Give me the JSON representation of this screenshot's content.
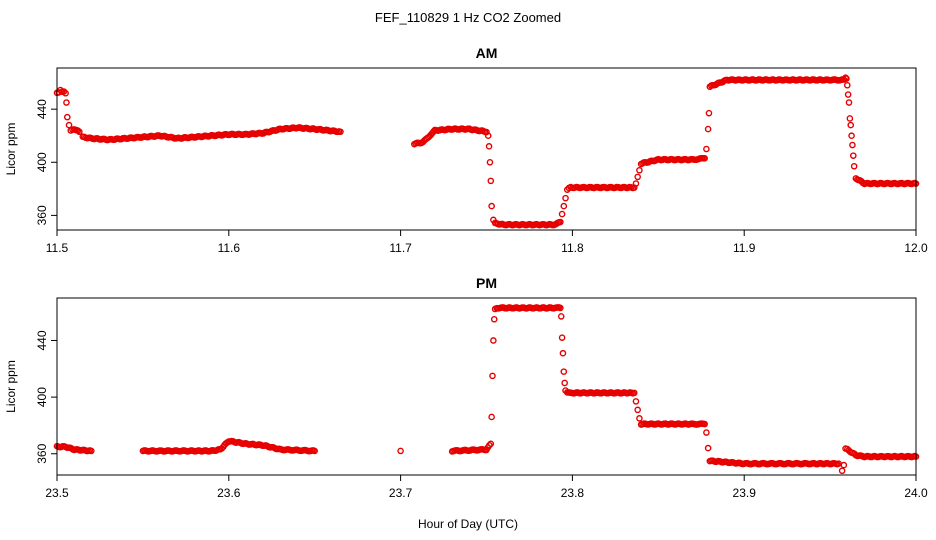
{
  "figure": {
    "title": "FEF_110829  1 Hz CO2 Zoomed",
    "xlabel": "Hour of Day (UTC)"
  },
  "colors": {
    "points": "#e60000",
    "axes": "#000000",
    "background": "#ffffff"
  },
  "chart_data": [
    {
      "type": "scatter",
      "title": "AM",
      "ylabel": "Licor ppm",
      "xlim": [
        11.5,
        12.0
      ],
      "ylim": [
        349,
        471
      ],
      "xticks": [
        11.5,
        11.6,
        11.7,
        11.8,
        11.9,
        12.0
      ],
      "xtick_labels": [
        "11.5",
        "11.6",
        "11.7",
        "11.8",
        "11.9",
        "12.0"
      ],
      "yticks": [
        360,
        400,
        440
      ],
      "ytick_labels": [
        "360",
        "400",
        "440"
      ],
      "grid": false,
      "series": [
        {
          "x": [
            11.5,
            11.502,
            11.504,
            11.505,
            11.5055,
            11.506,
            11.507,
            11.508,
            11.51,
            11.513,
            11.515,
            11.52,
            11.53,
            11.54,
            11.55,
            11.56,
            11.57,
            11.58,
            11.59,
            11.6,
            11.61,
            11.62,
            11.63,
            11.64,
            11.65,
            11.665,
            11.708,
            11.713,
            11.72,
            11.73,
            11.74,
            11.75,
            11.751,
            11.7515,
            11.752,
            11.7525,
            11.753,
            11.754,
            11.755,
            11.76,
            11.77,
            11.78,
            11.79,
            11.793,
            11.794,
            11.795,
            11.796,
            11.797,
            11.798,
            11.8,
            11.81,
            11.82,
            11.83,
            11.836,
            11.837,
            11.838,
            11.839,
            11.84,
            11.85,
            11.86,
            11.87,
            11.877,
            11.878,
            11.879,
            11.8795,
            11.88,
            11.89,
            11.9,
            11.91,
            11.92,
            11.93,
            11.94,
            11.95,
            11.958,
            11.959,
            11.9595,
            11.96,
            11.9605,
            11.961,
            11.9615,
            11.962,
            11.9625,
            11.963,
            11.9635,
            11.964,
            11.965,
            11.97,
            11.98,
            11.99,
            12.0
          ],
          "y": [
            452,
            454,
            453,
            452,
            445,
            434,
            428,
            424,
            425,
            423,
            419,
            418,
            417,
            418,
            419,
            420,
            418,
            419,
            420,
            421,
            421,
            422,
            425,
            426,
            425,
            423,
            414,
            415,
            424,
            425,
            425,
            423,
            420,
            412,
            400,
            386,
            367,
            357,
            354,
            353,
            353,
            353,
            353,
            355,
            361,
            367,
            373,
            379,
            381,
            381,
            381,
            381,
            381,
            381,
            384,
            389,
            394,
            399,
            402,
            402,
            402,
            403,
            410,
            425,
            437,
            457,
            462,
            462,
            462,
            462,
            462,
            462,
            462,
            462,
            464,
            463,
            458,
            451,
            445,
            433,
            428,
            420,
            413,
            405,
            397,
            388,
            384,
            384,
            384,
            384
          ]
        }
      ]
    },
    {
      "type": "scatter",
      "title": "PM",
      "ylabel": "Licor ppm",
      "xlim": [
        23.5,
        24.0
      ],
      "ylim": [
        345,
        470
      ],
      "xticks": [
        23.5,
        23.6,
        23.7,
        23.8,
        23.9,
        24.0
      ],
      "xtick_labels": [
        "23.5",
        "23.6",
        "23.7",
        "23.8",
        "23.9",
        "24.0"
      ],
      "yticks": [
        360,
        400,
        440
      ],
      "ytick_labels": [
        "360",
        "400",
        "440"
      ],
      "grid": false,
      "series": [
        {
          "x": [
            23.5,
            23.505,
            23.51,
            23.52,
            23.55,
            23.58,
            23.59,
            23.595,
            23.6,
            23.61,
            23.62,
            23.63,
            23.65,
            23.7,
            23.73,
            23.75,
            23.7525,
            23.753,
            23.7535,
            23.754,
            23.7545,
            23.755,
            23.756,
            23.76,
            23.77,
            23.78,
            23.79,
            23.793,
            23.7935,
            23.794,
            23.7945,
            23.795,
            23.7955,
            23.796,
            23.797,
            23.8,
            23.81,
            23.82,
            23.83,
            23.836,
            23.837,
            23.838,
            23.839,
            23.84,
            23.85,
            23.86,
            23.87,
            23.877,
            23.878,
            23.879,
            23.88,
            23.89,
            23.9,
            23.92,
            23.94,
            23.955,
            23.957,
            23.958,
            23.959,
            23.96,
            23.965,
            23.97,
            23.98,
            23.99,
            24.0
          ],
          "y": [
            365,
            365,
            363,
            362,
            362,
            362,
            362,
            363,
            369,
            367,
            366,
            363,
            362,
            362,
            362,
            363,
            367,
            386,
            415,
            440,
            455,
            462,
            463,
            463,
            463,
            463,
            463,
            463,
            457,
            442,
            431,
            418,
            410,
            405,
            403,
            403,
            403,
            403,
            403,
            403,
            397,
            391,
            385,
            381,
            381,
            381,
            381,
            381,
            375,
            364,
            355,
            354,
            353,
            353,
            353,
            353,
            348,
            352,
            364,
            363,
            359,
            358,
            358,
            358,
            358
          ]
        }
      ]
    }
  ]
}
